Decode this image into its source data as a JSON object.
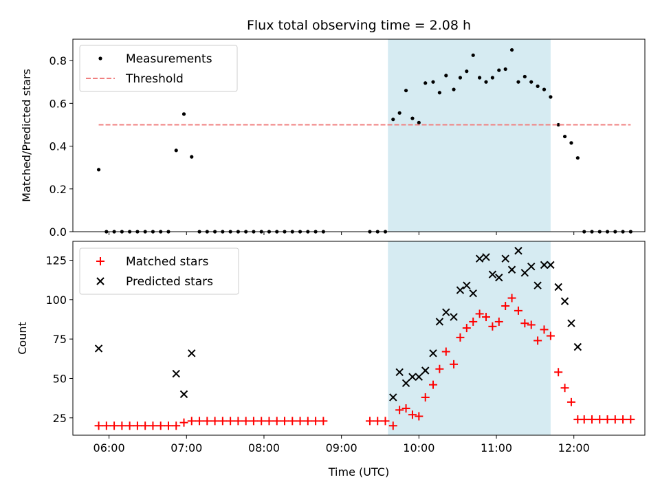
{
  "chart_data": [
    {
      "type": "scatter",
      "title": "Flux total observing time = 2.08 h",
      "xlabel": "",
      "ylabel": "Matched/Predicted stars",
      "xlim": [
        "05:32",
        "12:55"
      ],
      "ylim": [
        0,
        0.9
      ],
      "yticks": [
        0.0,
        0.2,
        0.4,
        0.6,
        0.8
      ],
      "ytick_labels": [
        "0.0",
        "0.2",
        "0.4",
        "0.6",
        "0.8"
      ],
      "grid": false,
      "legend": "top-left",
      "shaded_span": {
        "start": "09:36",
        "end": "11:42",
        "color": "#add8e6"
      },
      "series": [
        {
          "name": "Measurements",
          "marker": "dot",
          "color": "#000000",
          "points": [
            [
              "05:52",
              0.29
            ],
            [
              "05:58",
              0.0
            ],
            [
              "06:04",
              0.0
            ],
            [
              "06:10",
              0.0
            ],
            [
              "06:16",
              0.0
            ],
            [
              "06:22",
              0.0
            ],
            [
              "06:28",
              0.0
            ],
            [
              "06:34",
              0.0
            ],
            [
              "06:40",
              0.0
            ],
            [
              "06:46",
              0.0
            ],
            [
              "06:52",
              0.38
            ],
            [
              "06:58",
              0.55
            ],
            [
              "07:04",
              0.35
            ],
            [
              "07:10",
              0.0
            ],
            [
              "07:16",
              0.0
            ],
            [
              "07:22",
              0.0
            ],
            [
              "07:28",
              0.0
            ],
            [
              "07:34",
              0.0
            ],
            [
              "07:40",
              0.0
            ],
            [
              "07:46",
              0.0
            ],
            [
              "07:52",
              0.0
            ],
            [
              "07:58",
              0.0
            ],
            [
              "08:04",
              0.0
            ],
            [
              "08:10",
              0.0
            ],
            [
              "08:16",
              0.0
            ],
            [
              "08:22",
              0.0
            ],
            [
              "08:28",
              0.0
            ],
            [
              "08:34",
              0.0
            ],
            [
              "08:40",
              0.0
            ],
            [
              "08:46",
              0.0
            ],
            [
              "09:22",
              0.0
            ],
            [
              "09:28",
              0.0
            ],
            [
              "09:34",
              0.0
            ],
            [
              "09:40",
              0.525
            ],
            [
              "09:45",
              0.555
            ],
            [
              "09:50",
              0.66
            ],
            [
              "09:55",
              0.53
            ],
            [
              "10:00",
              0.51
            ],
            [
              "10:05",
              0.695
            ],
            [
              "10:11",
              0.7
            ],
            [
              "10:16",
              0.65
            ],
            [
              "10:21",
              0.73
            ],
            [
              "10:27",
              0.665
            ],
            [
              "10:32",
              0.72
            ],
            [
              "10:37",
              0.75
            ],
            [
              "10:42",
              0.825
            ],
            [
              "10:47",
              0.72
            ],
            [
              "10:52",
              0.7
            ],
            [
              "10:57",
              0.72
            ],
            [
              "11:02",
              0.755
            ],
            [
              "11:07",
              0.76
            ],
            [
              "11:12",
              0.85
            ],
            [
              "11:17",
              0.7
            ],
            [
              "11:22",
              0.725
            ],
            [
              "11:27",
              0.7
            ],
            [
              "11:32",
              0.68
            ],
            [
              "11:37",
              0.665
            ],
            [
              "11:42",
              0.63
            ],
            [
              "11:48",
              0.5
            ],
            [
              "11:53",
              0.445
            ],
            [
              "11:58",
              0.415
            ],
            [
              "12:03",
              0.345
            ],
            [
              "12:08",
              0.0
            ],
            [
              "12:14",
              0.0
            ],
            [
              "12:20",
              0.0
            ],
            [
              "12:26",
              0.0
            ],
            [
              "12:32",
              0.0
            ],
            [
              "12:38",
              0.0
            ],
            [
              "12:44",
              0.0
            ]
          ]
        },
        {
          "name": "Threshold",
          "marker": "dashed-line",
          "color": "#f08080",
          "points": [
            [
              "05:52",
              0.5
            ],
            [
              "12:44",
              0.5
            ]
          ]
        }
      ]
    },
    {
      "type": "scatter",
      "title": "",
      "xlabel": "Time (UTC)",
      "ylabel": "Count",
      "xlim": [
        "05:32",
        "12:55"
      ],
      "ylim": [
        14,
        137
      ],
      "yticks": [
        25,
        50,
        75,
        100,
        125
      ],
      "ytick_labels": [
        "25",
        "50",
        "75",
        "100",
        "125"
      ],
      "xticks": [
        "06:00",
        "07:00",
        "08:00",
        "09:00",
        "10:00",
        "11:00",
        "12:00"
      ],
      "xtick_labels": [
        "06:00",
        "07:00",
        "08:00",
        "09:00",
        "10:00",
        "11:00",
        "12:00"
      ],
      "grid": false,
      "legend": "top-left",
      "shaded_span": {
        "start": "09:36",
        "end": "11:42",
        "color": "#add8e6"
      },
      "series": [
        {
          "name": "Matched stars",
          "marker": "plus",
          "color": "#ff0000",
          "points": [
            [
              "05:52",
              20
            ],
            [
              "05:58",
              20
            ],
            [
              "06:04",
              20
            ],
            [
              "06:10",
              20
            ],
            [
              "06:16",
              20
            ],
            [
              "06:22",
              20
            ],
            [
              "06:28",
              20
            ],
            [
              "06:34",
              20
            ],
            [
              "06:40",
              20
            ],
            [
              "06:46",
              20
            ],
            [
              "06:52",
              20
            ],
            [
              "06:58",
              22
            ],
            [
              "07:04",
              23
            ],
            [
              "07:10",
              23
            ],
            [
              "07:16",
              23
            ],
            [
              "07:22",
              23
            ],
            [
              "07:28",
              23
            ],
            [
              "07:34",
              23
            ],
            [
              "07:40",
              23
            ],
            [
              "07:46",
              23
            ],
            [
              "07:52",
              23
            ],
            [
              "07:58",
              23
            ],
            [
              "08:04",
              23
            ],
            [
              "08:10",
              23
            ],
            [
              "08:16",
              23
            ],
            [
              "08:22",
              23
            ],
            [
              "08:28",
              23
            ],
            [
              "08:34",
              23
            ],
            [
              "08:40",
              23
            ],
            [
              "08:46",
              23
            ],
            [
              "09:22",
              23
            ],
            [
              "09:28",
              23
            ],
            [
              "09:34",
              23
            ],
            [
              "09:40",
              20
            ],
            [
              "09:45",
              30
            ],
            [
              "09:50",
              31
            ],
            [
              "09:55",
              27
            ],
            [
              "10:00",
              26
            ],
            [
              "10:05",
              38
            ],
            [
              "10:11",
              46
            ],
            [
              "10:16",
              56
            ],
            [
              "10:21",
              67
            ],
            [
              "10:27",
              59
            ],
            [
              "10:32",
              76
            ],
            [
              "10:37",
              82
            ],
            [
              "10:42",
              86
            ],
            [
              "10:47",
              91
            ],
            [
              "10:52",
              89
            ],
            [
              "10:57",
              83
            ],
            [
              "11:02",
              86
            ],
            [
              "11:07",
              96
            ],
            [
              "11:12",
              101
            ],
            [
              "11:17",
              93
            ],
            [
              "11:22",
              85
            ],
            [
              "11:27",
              84
            ],
            [
              "11:32",
              74
            ],
            [
              "11:37",
              81
            ],
            [
              "11:42",
              77
            ],
            [
              "11:48",
              54
            ],
            [
              "11:53",
              44
            ],
            [
              "11:58",
              35
            ],
            [
              "12:03",
              24
            ],
            [
              "12:08",
              24
            ],
            [
              "12:14",
              24
            ],
            [
              "12:20",
              24
            ],
            [
              "12:26",
              24
            ],
            [
              "12:32",
              24
            ],
            [
              "12:38",
              24
            ],
            [
              "12:44",
              24
            ]
          ]
        },
        {
          "name": "Predicted stars",
          "marker": "x",
          "color": "#000000",
          "points": [
            [
              "05:52",
              69
            ],
            [
              "06:52",
              53
            ],
            [
              "06:58",
              40
            ],
            [
              "07:04",
              66
            ],
            [
              "09:40",
              38
            ],
            [
              "09:45",
              54
            ],
            [
              "09:50",
              47
            ],
            [
              "09:55",
              51
            ],
            [
              "10:00",
              51
            ],
            [
              "10:05",
              55
            ],
            [
              "10:11",
              66
            ],
            [
              "10:16",
              86
            ],
            [
              "10:21",
              92
            ],
            [
              "10:27",
              89
            ],
            [
              "10:32",
              106
            ],
            [
              "10:37",
              109
            ],
            [
              "10:42",
              104
            ],
            [
              "10:47",
              126
            ],
            [
              "10:52",
              127
            ],
            [
              "10:57",
              116
            ],
            [
              "11:02",
              114
            ],
            [
              "11:07",
              126
            ],
            [
              "11:12",
              119
            ],
            [
              "11:17",
              131
            ],
            [
              "11:22",
              117
            ],
            [
              "11:27",
              121
            ],
            [
              "11:32",
              109
            ],
            [
              "11:37",
              122
            ],
            [
              "11:42",
              122
            ],
            [
              "11:48",
              108
            ],
            [
              "11:53",
              99
            ],
            [
              "11:58",
              85
            ],
            [
              "12:03",
              70
            ]
          ]
        }
      ]
    }
  ]
}
